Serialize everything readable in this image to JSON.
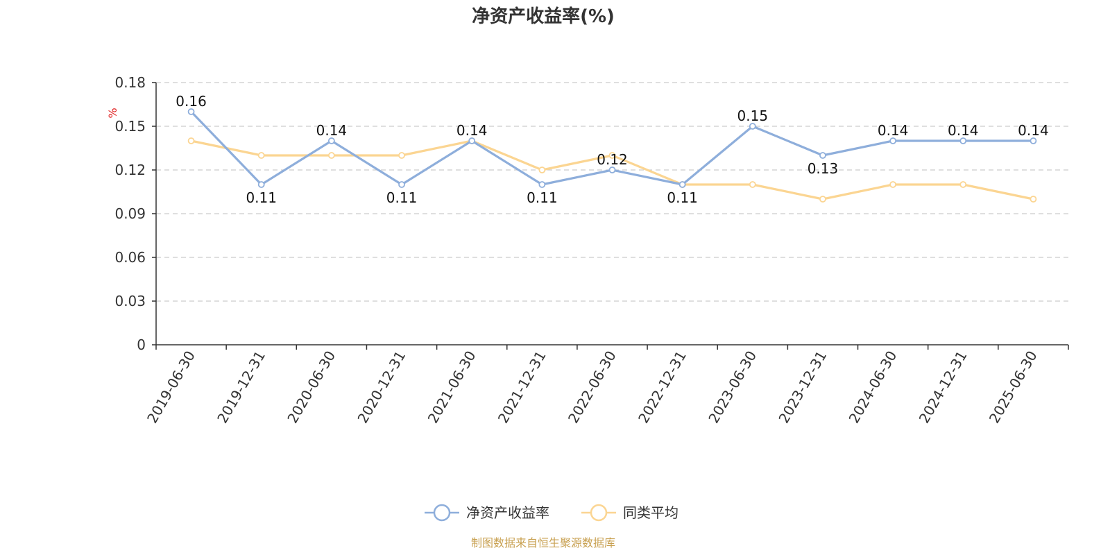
{
  "chart_data": {
    "type": "line",
    "title": "净资产收益率(%)",
    "ylabel": "%",
    "xlabel": "",
    "ylim": [
      0,
      0.18
    ],
    "y_ticks": [
      0,
      0.03,
      0.06,
      0.09,
      0.12,
      0.15,
      0.18
    ],
    "y_tick_labels": [
      "0",
      "0.03",
      "0.06",
      "0.09",
      "0.12",
      "0.15",
      "0.18"
    ],
    "grid": true,
    "legend_position": "bottom-center",
    "categories": [
      "2019-06-30",
      "2019-12-31",
      "2020-06-30",
      "2020-12-31",
      "2021-06-30",
      "2021-12-31",
      "2022-06-30",
      "2022-12-31",
      "2023-06-30",
      "2023-12-31",
      "2024-06-30",
      "2024-12-31",
      "2025-06-30"
    ],
    "series": [
      {
        "name": "净资产收益率",
        "color": "#8eaedb",
        "values": [
          0.16,
          0.11,
          0.14,
          0.11,
          0.14,
          0.11,
          0.12,
          0.11,
          0.15,
          0.13,
          0.14,
          0.14,
          0.14
        ],
        "data_labels": [
          "0.16",
          "0.11",
          "0.14",
          "0.11",
          "0.14",
          "0.11",
          "0.12",
          "0.11",
          "0.15",
          "0.13",
          "0.14",
          "0.14",
          "0.14"
        ]
      },
      {
        "name": "同类平均",
        "color": "#fbd592",
        "values": [
          0.14,
          0.13,
          0.13,
          0.13,
          0.14,
          0.12,
          0.13,
          0.11,
          0.11,
          0.1,
          0.11,
          0.11,
          0.1
        ]
      }
    ]
  },
  "source_text": "制图数据来自恒生聚源数据库",
  "colors": {
    "axis": "#333333",
    "grid": "#cccccc",
    "unit_label": "#e02020",
    "source_text": "#c8a050",
    "title": "#333333"
  }
}
